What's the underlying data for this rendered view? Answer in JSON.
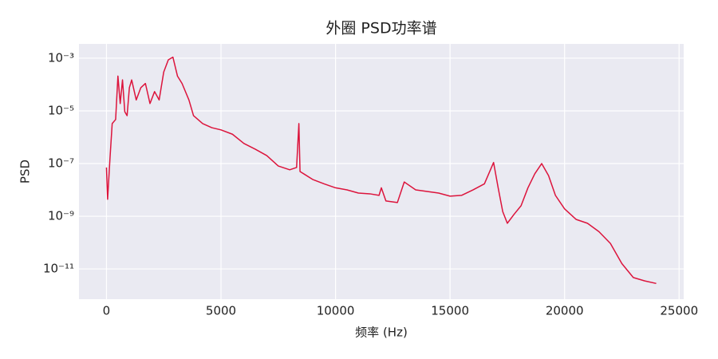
{
  "chart_data": {
    "type": "line",
    "title": "外圈 PSD功率谱",
    "x_label": "频率 (Hz)",
    "y_label": "PSD",
    "x": [
      0,
      50,
      150,
      250,
      400,
      500,
      600,
      700,
      800,
      900,
      1000,
      1100,
      1300,
      1500,
      1700,
      1900,
      2100,
      2300,
      2500,
      2700,
      2900,
      3100,
      3300,
      3600,
      3800,
      4200,
      4600,
      5000,
      5500,
      6000,
      6500,
      7000,
      7500,
      8000,
      8300,
      8400,
      8450,
      9000,
      9500,
      10000,
      10500,
      11000,
      11500,
      11900,
      12000,
      12200,
      12700,
      13000,
      13500,
      14000,
      14500,
      15000,
      15500,
      16000,
      16500,
      16900,
      17100,
      17300,
      17500,
      17800,
      18100,
      18400,
      18700,
      19000,
      19300,
      19600,
      20000,
      20500,
      21000,
      21500,
      22000,
      22500,
      23000,
      23500,
      24000
    ],
    "series": [
      {
        "name": "PSD",
        "color": "#dc143c",
        "values": [
          7.1e-08,
          4.4e-09,
          1.4e-07,
          3.3e-06,
          4.7e-06,
          0.00021,
          1.9e-05,
          0.00015,
          9.3e-06,
          6.6e-06,
          7.6e-05,
          0.00015,
          2.6e-05,
          7.6e-05,
          0.00011,
          1.9e-05,
          5.4e-05,
          2.6e-05,
          0.0003,
          0.00087,
          0.0011,
          0.00021,
          0.00011,
          2.6e-05,
          6.6e-06,
          3.3e-06,
          2.3e-06,
          1.9e-06,
          1.3e-06,
          5.8e-07,
          3.5e-07,
          2e-07,
          8.1e-08,
          5.8e-08,
          7.1e-08,
          3.3e-06,
          5e-08,
          2.5e-08,
          1.7e-08,
          1.2e-08,
          1e-08,
          7.6e-09,
          7.1e-09,
          6.2e-09,
          1.2e-08,
          3.8e-09,
          3.3e-09,
          2e-08,
          1e-08,
          8.7e-09,
          7.6e-09,
          5.8e-09,
          6.2e-09,
          1e-08,
          1.7e-08,
          1.1e-07,
          1.2e-08,
          1.5e-09,
          5.4e-10,
          1.2e-09,
          2.5e-09,
          1.2e-08,
          4.1e-08,
          1e-07,
          3.5e-08,
          6.2e-09,
          1.9e-09,
          7.6e-10,
          5.4e-10,
          2.6e-10,
          9.3e-11,
          1.6e-11,
          4.7e-12,
          3.5e-12,
          2.8e-12
        ]
      }
    ],
    "xlim": [
      -1200,
      25200
    ],
    "xticks": [
      0,
      5000,
      10000,
      15000,
      20000,
      25000
    ],
    "ylim": [
      7.1e-13,
      0.0035
    ],
    "y_scale": "log",
    "yticks": [
      {
        "value": 0.001,
        "label": "10⁻³"
      },
      {
        "value": 1e-05,
        "label": "10⁻⁵"
      },
      {
        "value": 1e-07,
        "label": "10⁻⁷"
      },
      {
        "value": 1e-09,
        "label": "10⁻⁹"
      },
      {
        "value": 1e-11,
        "label": "10⁻¹¹"
      }
    ],
    "grid": true
  }
}
